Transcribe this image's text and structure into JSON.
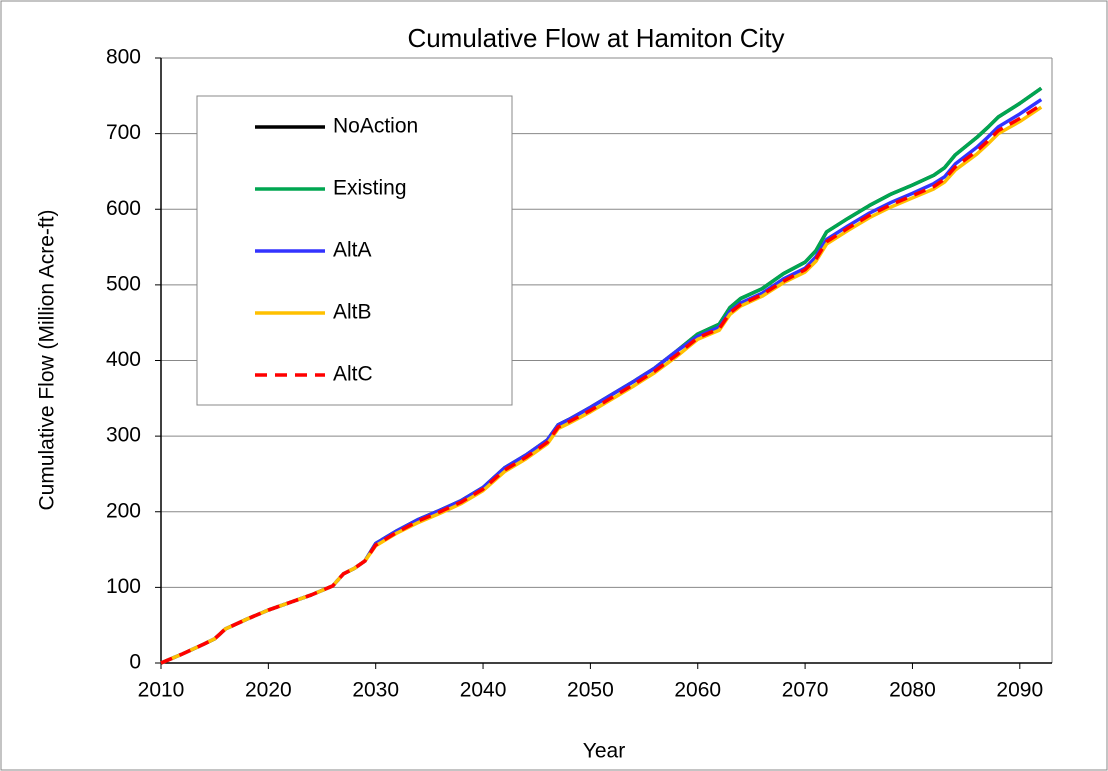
{
  "chart_data": {
    "type": "line",
    "title": "Cumulative Flow at Hamiton City",
    "x_label": "Year",
    "y_label": "Cumulative Flow (Million Acre-ft)",
    "x": [
      2010,
      2012,
      2014,
      2015,
      2016,
      2018,
      2020,
      2022,
      2024,
      2026,
      2027,
      2028,
      2029,
      2030,
      2032,
      2034,
      2036,
      2038,
      2040,
      2042,
      2044,
      2046,
      2047,
      2048,
      2050,
      2052,
      2054,
      2056,
      2058,
      2060,
      2062,
      2063,
      2064,
      2066,
      2068,
      2070,
      2071,
      2072,
      2074,
      2076,
      2078,
      2080,
      2082,
      2083,
      2084,
      2086,
      2087,
      2088,
      2090,
      2092
    ],
    "series": [
      {
        "name": "NoAction",
        "color": "#000000",
        "values": [
          0,
          12,
          25,
          32,
          45,
          58,
          70,
          80,
          90,
          102,
          118,
          125,
          135,
          158,
          175,
          190,
          202,
          215,
          232,
          258,
          275,
          295,
          315,
          322,
          338,
          355,
          372,
          390,
          412,
          435,
          448,
          470,
          482,
          495,
          515,
          530,
          545,
          570,
          588,
          605,
          620,
          632,
          645,
          655,
          672,
          695,
          708,
          722,
          740,
          760
        ]
      },
      {
        "name": "Existing",
        "color": "#00a651",
        "values": [
          0,
          12,
          25,
          32,
          45,
          58,
          70,
          80,
          90,
          102,
          118,
          125,
          135,
          158,
          175,
          190,
          202,
          215,
          232,
          258,
          275,
          295,
          315,
          322,
          338,
          355,
          372,
          390,
          412,
          435,
          448,
          470,
          482,
          495,
          515,
          530,
          545,
          570,
          588,
          605,
          620,
          632,
          645,
          655,
          672,
          695,
          708,
          722,
          740,
          760
        ]
      },
      {
        "name": "AltA",
        "color": "#3333ff",
        "values": [
          0,
          12,
          25,
          32,
          45,
          58,
          70,
          80,
          90,
          102,
          118,
          125,
          135,
          158,
          175,
          190,
          202,
          215,
          232,
          258,
          275,
          295,
          315,
          322,
          338,
          355,
          372,
          390,
          412,
          432,
          444,
          465,
          476,
          489,
          508,
          522,
          537,
          560,
          578,
          595,
          609,
          621,
          634,
          643,
          660,
          682,
          695,
          709,
          726,
          745
        ]
      },
      {
        "name": "AltB",
        "color": "#ffc000",
        "values": [
          0,
          12,
          25,
          32,
          45,
          58,
          70,
          80,
          90,
          102,
          118,
          125,
          135,
          155,
          172,
          186,
          198,
          211,
          228,
          253,
          270,
          290,
          310,
          317,
          332,
          349,
          366,
          384,
          405,
          428,
          440,
          461,
          472,
          485,
          503,
          517,
          531,
          554,
          572,
          589,
          603,
          615,
          627,
          636,
          652,
          673,
          686,
          700,
          716,
          735
        ]
      },
      {
        "name": "AltC",
        "color": "#ff0000",
        "line_style": "dashed",
        "values": [
          0,
          12,
          25,
          32,
          45,
          58,
          70,
          80,
          90,
          102,
          118,
          125,
          135,
          156,
          173,
          188,
          200,
          213,
          230,
          255,
          272,
          292,
          312,
          319,
          334,
          351,
          368,
          386,
          407,
          430,
          442,
          463,
          474,
          487,
          505,
          520,
          534,
          557,
          575,
          592,
          606,
          618,
          630,
          640,
          656,
          677,
          690,
          704,
          720,
          738
        ]
      }
    ],
    "xlim": [
      2010,
      2093
    ],
    "xticks": [
      2010,
      2020,
      2030,
      2040,
      2050,
      2060,
      2070,
      2080,
      2090
    ],
    "ylim": [
      0,
      800
    ],
    "yticks": [
      0,
      100,
      200,
      300,
      400,
      500,
      600,
      700,
      800
    ],
    "grid": true,
    "legend": "upper left"
  }
}
